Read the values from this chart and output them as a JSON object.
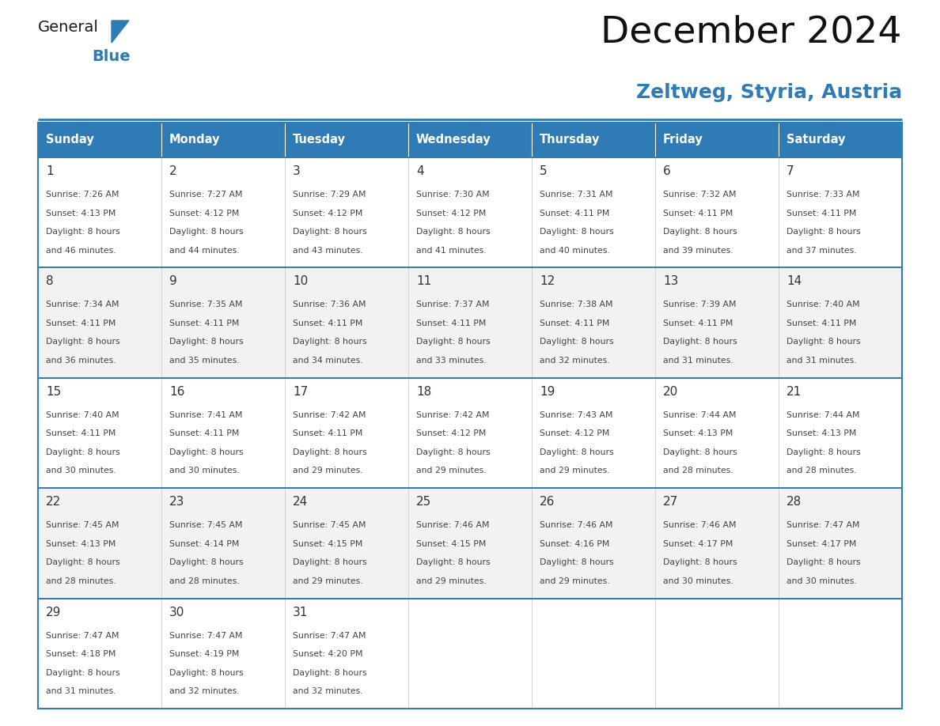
{
  "title": "December 2024",
  "subtitle": "Zeltweg, Styria, Austria",
  "header_bg": "#2E7BB5",
  "header_text_color": "#FFFFFF",
  "day_names": [
    "Sunday",
    "Monday",
    "Tuesday",
    "Wednesday",
    "Thursday",
    "Friday",
    "Saturday"
  ],
  "row_separator_color": "#2E7BB5",
  "text_color": "#333333",
  "date_color": "#333333",
  "days": [
    {
      "day": 1,
      "col": 0,
      "row": 0,
      "sunrise": "7:26 AM",
      "sunset": "4:13 PM",
      "daylight_min": 46
    },
    {
      "day": 2,
      "col": 1,
      "row": 0,
      "sunrise": "7:27 AM",
      "sunset": "4:12 PM",
      "daylight_min": 44
    },
    {
      "day": 3,
      "col": 2,
      "row": 0,
      "sunrise": "7:29 AM",
      "sunset": "4:12 PM",
      "daylight_min": 43
    },
    {
      "day": 4,
      "col": 3,
      "row": 0,
      "sunrise": "7:30 AM",
      "sunset": "4:12 PM",
      "daylight_min": 41
    },
    {
      "day": 5,
      "col": 4,
      "row": 0,
      "sunrise": "7:31 AM",
      "sunset": "4:11 PM",
      "daylight_min": 40
    },
    {
      "day": 6,
      "col": 5,
      "row": 0,
      "sunrise": "7:32 AM",
      "sunset": "4:11 PM",
      "daylight_min": 39
    },
    {
      "day": 7,
      "col": 6,
      "row": 0,
      "sunrise": "7:33 AM",
      "sunset": "4:11 PM",
      "daylight_min": 37
    },
    {
      "day": 8,
      "col": 0,
      "row": 1,
      "sunrise": "7:34 AM",
      "sunset": "4:11 PM",
      "daylight_min": 36
    },
    {
      "day": 9,
      "col": 1,
      "row": 1,
      "sunrise": "7:35 AM",
      "sunset": "4:11 PM",
      "daylight_min": 35
    },
    {
      "day": 10,
      "col": 2,
      "row": 1,
      "sunrise": "7:36 AM",
      "sunset": "4:11 PM",
      "daylight_min": 34
    },
    {
      "day": 11,
      "col": 3,
      "row": 1,
      "sunrise": "7:37 AM",
      "sunset": "4:11 PM",
      "daylight_min": 33
    },
    {
      "day": 12,
      "col": 4,
      "row": 1,
      "sunrise": "7:38 AM",
      "sunset": "4:11 PM",
      "daylight_min": 32
    },
    {
      "day": 13,
      "col": 5,
      "row": 1,
      "sunrise": "7:39 AM",
      "sunset": "4:11 PM",
      "daylight_min": 31
    },
    {
      "day": 14,
      "col": 6,
      "row": 1,
      "sunrise": "7:40 AM",
      "sunset": "4:11 PM",
      "daylight_min": 31
    },
    {
      "day": 15,
      "col": 0,
      "row": 2,
      "sunrise": "7:40 AM",
      "sunset": "4:11 PM",
      "daylight_min": 30
    },
    {
      "day": 16,
      "col": 1,
      "row": 2,
      "sunrise": "7:41 AM",
      "sunset": "4:11 PM",
      "daylight_min": 30
    },
    {
      "day": 17,
      "col": 2,
      "row": 2,
      "sunrise": "7:42 AM",
      "sunset": "4:11 PM",
      "daylight_min": 29
    },
    {
      "day": 18,
      "col": 3,
      "row": 2,
      "sunrise": "7:42 AM",
      "sunset": "4:12 PM",
      "daylight_min": 29
    },
    {
      "day": 19,
      "col": 4,
      "row": 2,
      "sunrise": "7:43 AM",
      "sunset": "4:12 PM",
      "daylight_min": 29
    },
    {
      "day": 20,
      "col": 5,
      "row": 2,
      "sunrise": "7:44 AM",
      "sunset": "4:13 PM",
      "daylight_min": 28
    },
    {
      "day": 21,
      "col": 6,
      "row": 2,
      "sunrise": "7:44 AM",
      "sunset": "4:13 PM",
      "daylight_min": 28
    },
    {
      "day": 22,
      "col": 0,
      "row": 3,
      "sunrise": "7:45 AM",
      "sunset": "4:13 PM",
      "daylight_min": 28
    },
    {
      "day": 23,
      "col": 1,
      "row": 3,
      "sunrise": "7:45 AM",
      "sunset": "4:14 PM",
      "daylight_min": 28
    },
    {
      "day": 24,
      "col": 2,
      "row": 3,
      "sunrise": "7:45 AM",
      "sunset": "4:15 PM",
      "daylight_min": 29
    },
    {
      "day": 25,
      "col": 3,
      "row": 3,
      "sunrise": "7:46 AM",
      "sunset": "4:15 PM",
      "daylight_min": 29
    },
    {
      "day": 26,
      "col": 4,
      "row": 3,
      "sunrise": "7:46 AM",
      "sunset": "4:16 PM",
      "daylight_min": 29
    },
    {
      "day": 27,
      "col": 5,
      "row": 3,
      "sunrise": "7:46 AM",
      "sunset": "4:17 PM",
      "daylight_min": 30
    },
    {
      "day": 28,
      "col": 6,
      "row": 3,
      "sunrise": "7:47 AM",
      "sunset": "4:17 PM",
      "daylight_min": 30
    },
    {
      "day": 29,
      "col": 0,
      "row": 4,
      "sunrise": "7:47 AM",
      "sunset": "4:18 PM",
      "daylight_min": 31
    },
    {
      "day": 30,
      "col": 1,
      "row": 4,
      "sunrise": "7:47 AM",
      "sunset": "4:19 PM",
      "daylight_min": 32
    },
    {
      "day": 31,
      "col": 2,
      "row": 4,
      "sunrise": "7:47 AM",
      "sunset": "4:20 PM",
      "daylight_min": 32
    }
  ]
}
